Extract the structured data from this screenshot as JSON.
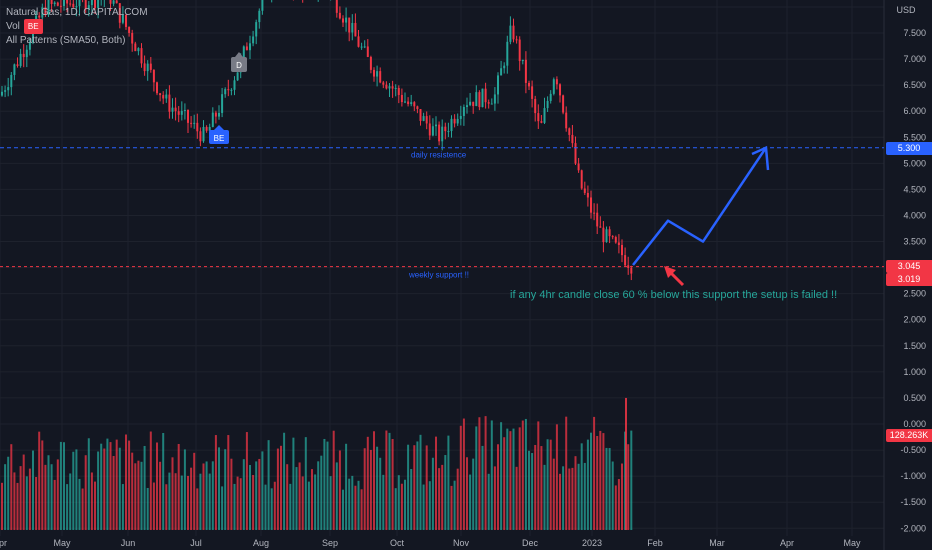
{
  "header": {
    "symbol": "Natural Gas, 1D, CAPITALCOM",
    "vol_label": "Vol",
    "vol_badge": "BE",
    "indicator": "All Patterns (SMA50, Both)"
  },
  "axis": {
    "currency": "USD",
    "price_ticks": [
      "7.500",
      "7.000",
      "6.500",
      "6.000",
      "5.500",
      "5.000",
      "4.500",
      "4.000",
      "3.500",
      "2.500",
      "2.000",
      "1.500",
      "1.000",
      "0.500",
      "0.000",
      "-0.500",
      "-1.000",
      "-1.500",
      "-2.000"
    ],
    "month_ticks": [
      "Apr",
      "May",
      "Jun",
      "Jul",
      "Aug",
      "Sep",
      "Oct",
      "Nov",
      "Dec",
      "2023",
      "Feb",
      "Mar",
      "Apr",
      "May"
    ]
  },
  "tags": {
    "resistance": "5.300",
    "last_price": "3.045",
    "support": "3.019",
    "volume": "128.263K"
  },
  "annotations": {
    "resistance_label": "daily resistence",
    "support_label": "weekly support !!",
    "note": "if any 4hr candle close 60 % below this support the setup is failed !!",
    "marker_be": "BE",
    "marker_d": "D"
  },
  "colors": {
    "up": "#26a69a",
    "down": "#f23645",
    "resistance": "#2962ff",
    "support": "#f23645",
    "arrow": "#2962ff",
    "note": "#26a69a",
    "background": "#131722"
  },
  "chart_data": {
    "type": "candlestick",
    "title": "Natural Gas, 1D, CAPITALCOM",
    "ylabel": "USD",
    "ylim": [
      -2.0,
      8.0
    ],
    "x": [
      "Apr",
      "May",
      "Jun",
      "Jul",
      "Aug",
      "Sep",
      "Oct",
      "Nov",
      "Dec",
      "2023",
      "Feb",
      "Mar",
      "Apr",
      "May"
    ],
    "price_path": [
      {
        "date": "2022-04",
        "close": 6.3
      },
      {
        "date": "2022-05",
        "close": 8.0
      },
      {
        "date": "2022-06",
        "close": 8.2
      },
      {
        "date": "2022-06-end",
        "close": 6.2
      },
      {
        "date": "2022-07",
        "close": 5.5
      },
      {
        "date": "2022-07-mid",
        "close": 6.9
      },
      {
        "date": "2022-08",
        "close": 8.5
      },
      {
        "date": "2022-09",
        "close": 8.3
      },
      {
        "date": "2022-09-end",
        "close": 6.9
      },
      {
        "date": "2022-10",
        "close": 5.5
      },
      {
        "date": "2022-10-end",
        "close": 6.2
      },
      {
        "date": "2022-11",
        "close": 6.3
      },
      {
        "date": "2022-11-end",
        "close": 7.6
      },
      {
        "date": "2022-12",
        "close": 5.6
      },
      {
        "date": "2022-12-mid",
        "close": 6.8
      },
      {
        "date": "2022-12-end",
        "close": 4.6
      },
      {
        "date": "2023-01",
        "close": 3.7
      },
      {
        "date": "2023-01-end",
        "close": 3.045
      }
    ],
    "levels": [
      {
        "name": "daily resistence",
        "value": 5.3
      },
      {
        "name": "weekly support !!",
        "value": 3.019
      }
    ],
    "projection": [
      {
        "date": "2023-01-end",
        "value": 3.05
      },
      {
        "date": "2023-02-mid",
        "value": 3.9
      },
      {
        "date": "2023-02-end",
        "value": 3.5
      },
      {
        "date": "2023-03-end",
        "value": 5.3
      }
    ],
    "volume": {
      "last": "128.263K",
      "max_bar": 0.5
    },
    "grid": true,
    "legend": "top-left"
  }
}
